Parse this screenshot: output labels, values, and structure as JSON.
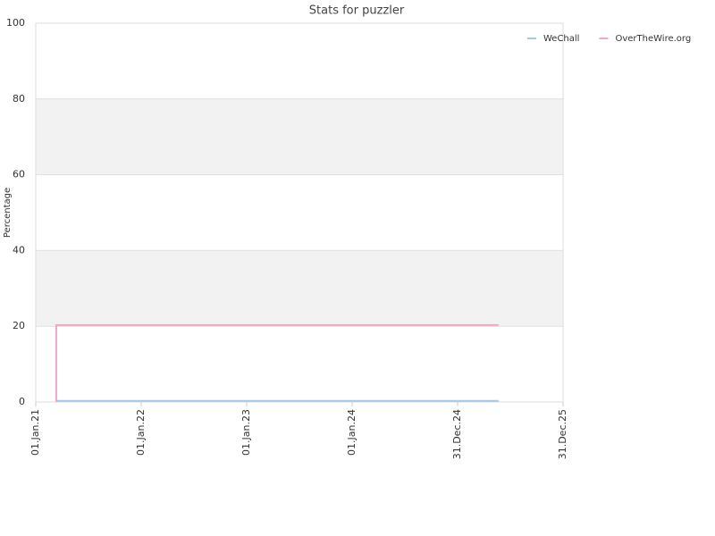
{
  "chart_data": {
    "type": "line",
    "title": "Stats for puzzler",
    "y_label": "Percentage",
    "x": [
      "2021-03-13",
      "2021-03-13",
      "2025-05-22"
    ],
    "series": [
      {
        "name": "WeChall",
        "color": "#a4c8e8",
        "values": [
          0.3,
          0.3,
          0.3
        ]
      },
      {
        "name": "OverTheWire.org",
        "color": "#f0a8c8",
        "values": [
          0,
          20.3,
          20.3
        ]
      }
    ],
    "xlim": [
      "2021-01-01",
      "2025-12-31"
    ],
    "xticks": [
      {
        "value": "2021-01-01",
        "label": "01.Jan.21"
      },
      {
        "value": "2022-01-01",
        "label": "01.Jan.22"
      },
      {
        "value": "2023-01-01",
        "label": "01.Jan.23"
      },
      {
        "value": "2024-01-01",
        "label": "01.Jan.24"
      },
      {
        "value": "2024-12-31",
        "label": "31.Dec.24"
      },
      {
        "value": "2025-12-31",
        "label": "31.Dec.25"
      }
    ],
    "ylim": [
      0,
      100
    ],
    "yticks": [
      0,
      20,
      40,
      60,
      80,
      100
    ],
    "grid": true,
    "legend": "upper right"
  }
}
